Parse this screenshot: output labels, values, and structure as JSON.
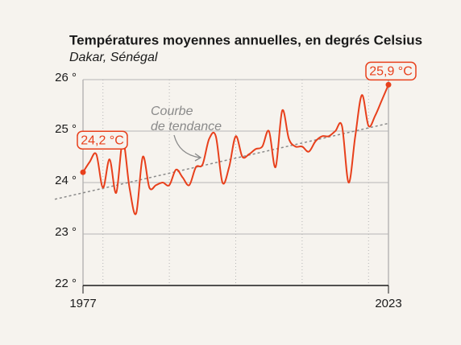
{
  "chart_data": {
    "type": "line",
    "title": "Températures moyennes annuelles, en degrés Celsius",
    "subtitle": "Dakar, Sénégal",
    "x": [
      1977,
      1978,
      1979,
      1980,
      1981,
      1982,
      1983,
      1984,
      1985,
      1986,
      1987,
      1988,
      1989,
      1990,
      1991,
      1992,
      1993,
      1994,
      1995,
      1996,
      1997,
      1998,
      1999,
      2000,
      2001,
      2002,
      2003,
      2004,
      2005,
      2006,
      2007,
      2008,
      2009,
      2010,
      2011,
      2012,
      2013,
      2014,
      2015,
      2016,
      2017,
      2018,
      2019,
      2020,
      2021,
      2022,
      2023
    ],
    "series": [
      {
        "name": "Dakar",
        "color": "#e8401c",
        "values": [
          24.2,
          24.4,
          24.55,
          23.9,
          24.45,
          23.8,
          24.8,
          23.9,
          23.4,
          24.5,
          23.9,
          23.95,
          24.0,
          23.95,
          24.25,
          24.1,
          23.95,
          24.3,
          24.35,
          24.85,
          24.9,
          24.0,
          24.3,
          24.9,
          24.5,
          24.55,
          24.65,
          24.7,
          25.0,
          24.3,
          25.4,
          24.85,
          24.7,
          24.7,
          24.6,
          24.8,
          24.9,
          24.9,
          25.0,
          25.1,
          24.0,
          24.9,
          25.7,
          25.1,
          25.3,
          25.6,
          25.9
        ],
        "value_labels": [
          "24,2 °C",
          null,
          null,
          null,
          null,
          null,
          null,
          null,
          null,
          null,
          null,
          null,
          null,
          null,
          null,
          null,
          null,
          null,
          null,
          null,
          null,
          null,
          null,
          null,
          null,
          null,
          null,
          null,
          null,
          null,
          null,
          null,
          null,
          null,
          null,
          null,
          null,
          null,
          null,
          null,
          null,
          null,
          null,
          null,
          null,
          null,
          "25,9 °C"
        ]
      }
    ],
    "trend": {
      "x": [
        1977,
        2023
      ],
      "values": [
        23.8,
        25.15
      ],
      "color": "#8a8a8a"
    },
    "annotation": [
      "Courbe",
      "de tendance"
    ],
    "xlim": [
      1977,
      2023
    ],
    "xticks": [
      1977,
      2023
    ],
    "xgrid": [
      1980,
      1990,
      2000,
      2010,
      2020
    ],
    "ylim": [
      22,
      26
    ],
    "yticks": [
      {
        "value": 22,
        "label": "22 °"
      },
      {
        "value": 23,
        "label": "23 °"
      },
      {
        "value": 24,
        "label": "24 °"
      },
      {
        "value": 25,
        "label": "25 °"
      },
      {
        "value": 26,
        "label": "26 °"
      }
    ],
    "grid": true
  }
}
